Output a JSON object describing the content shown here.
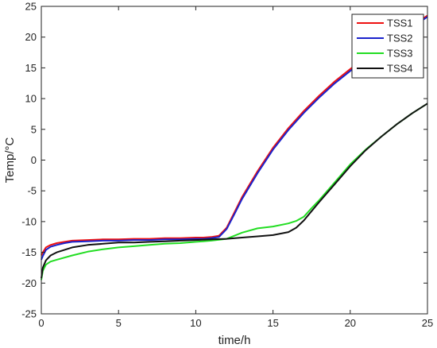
{
  "chart_data": {
    "type": "line",
    "xlabel": "time/h",
    "ylabel": "Temp/°C",
    "xlim": [
      0,
      25
    ],
    "ylim": [
      -25,
      25
    ],
    "xticks": [
      0,
      5,
      10,
      15,
      20,
      25
    ],
    "yticks": [
      -25,
      -20,
      -15,
      -10,
      -5,
      0,
      5,
      10,
      15,
      20,
      25
    ],
    "grid": false,
    "legend_position": "top-right",
    "series": [
      {
        "name": "TSS1",
        "color": "#ee1111",
        "x": [
          0,
          0.1,
          0.3,
          0.6,
          1,
          1.5,
          2,
          3,
          4,
          5,
          6,
          7,
          8,
          9,
          10,
          10.5,
          11,
          11.5,
          12,
          12.5,
          13,
          14,
          15,
          16,
          17,
          18,
          19,
          20,
          21,
          22,
          23,
          24,
          25
        ],
        "y": [
          -15.5,
          -15,
          -14.2,
          -13.8,
          -13.5,
          -13.3,
          -13.1,
          -13,
          -12.9,
          -12.9,
          -12.8,
          -12.8,
          -12.7,
          -12.7,
          -12.6,
          -12.6,
          -12.5,
          -12.3,
          -11,
          -8.5,
          -6,
          -1.8,
          2,
          5.2,
          8,
          10.5,
          12.8,
          14.8,
          16.7,
          18.5,
          20.2,
          21.9,
          23.5
        ]
      },
      {
        "name": "TSS2",
        "color": "#1a22cc",
        "x": [
          0,
          0.1,
          0.3,
          0.6,
          1,
          1.5,
          2,
          3,
          4,
          5,
          6,
          7,
          8,
          9,
          10,
          10.5,
          11,
          11.5,
          12,
          12.5,
          13,
          14,
          15,
          16,
          17,
          18,
          19,
          20,
          21,
          22,
          23,
          24,
          25
        ],
        "y": [
          -16.2,
          -15.6,
          -14.6,
          -14.1,
          -13.8,
          -13.5,
          -13.3,
          -13.2,
          -13.1,
          -13.1,
          -13,
          -13,
          -12.9,
          -12.9,
          -12.8,
          -12.8,
          -12.7,
          -12.5,
          -11.2,
          -8.8,
          -6.3,
          -2.1,
          1.7,
          4.9,
          7.7,
          10.2,
          12.5,
          14.5,
          16.4,
          18.2,
          19.9,
          21.6,
          23.3
        ]
      },
      {
        "name": "TSS3",
        "color": "#22dd22",
        "x": [
          0,
          0.1,
          0.3,
          0.6,
          1,
          2,
          3,
          4,
          5,
          6,
          7,
          8,
          9,
          10,
          11,
          12,
          13,
          14,
          15,
          16,
          16.5,
          17,
          17.5,
          18,
          19,
          20,
          21,
          22,
          23,
          24,
          25
        ],
        "y": [
          -19.5,
          -18,
          -17,
          -16.5,
          -16.2,
          -15.5,
          -14.9,
          -14.5,
          -14.2,
          -14,
          -13.8,
          -13.6,
          -13.5,
          -13.3,
          -13.1,
          -12.8,
          -11.8,
          -11.1,
          -10.8,
          -10.3,
          -9.9,
          -9.2,
          -7.8,
          -6.5,
          -3.6,
          -0.7,
          1.7,
          3.8,
          5.8,
          7.6,
          9.2
        ]
      },
      {
        "name": "TSS4",
        "color": "#111111",
        "x": [
          0,
          0.1,
          0.3,
          0.6,
          1,
          2,
          3,
          4,
          5,
          6,
          7,
          8,
          9,
          10,
          11,
          12,
          13,
          14,
          15,
          16,
          16.5,
          17,
          17.5,
          18,
          19,
          20,
          21,
          22,
          23,
          24,
          25
        ],
        "y": [
          -19.2,
          -17.5,
          -16.3,
          -15.5,
          -15,
          -14.2,
          -13.8,
          -13.6,
          -13.4,
          -13.4,
          -13.3,
          -13.2,
          -13.1,
          -13,
          -12.9,
          -12.8,
          -12.6,
          -12.4,
          -12.2,
          -11.7,
          -11,
          -9.8,
          -8.3,
          -6.8,
          -3.9,
          -1,
          1.6,
          3.8,
          5.8,
          7.6,
          9.2
        ]
      }
    ]
  }
}
